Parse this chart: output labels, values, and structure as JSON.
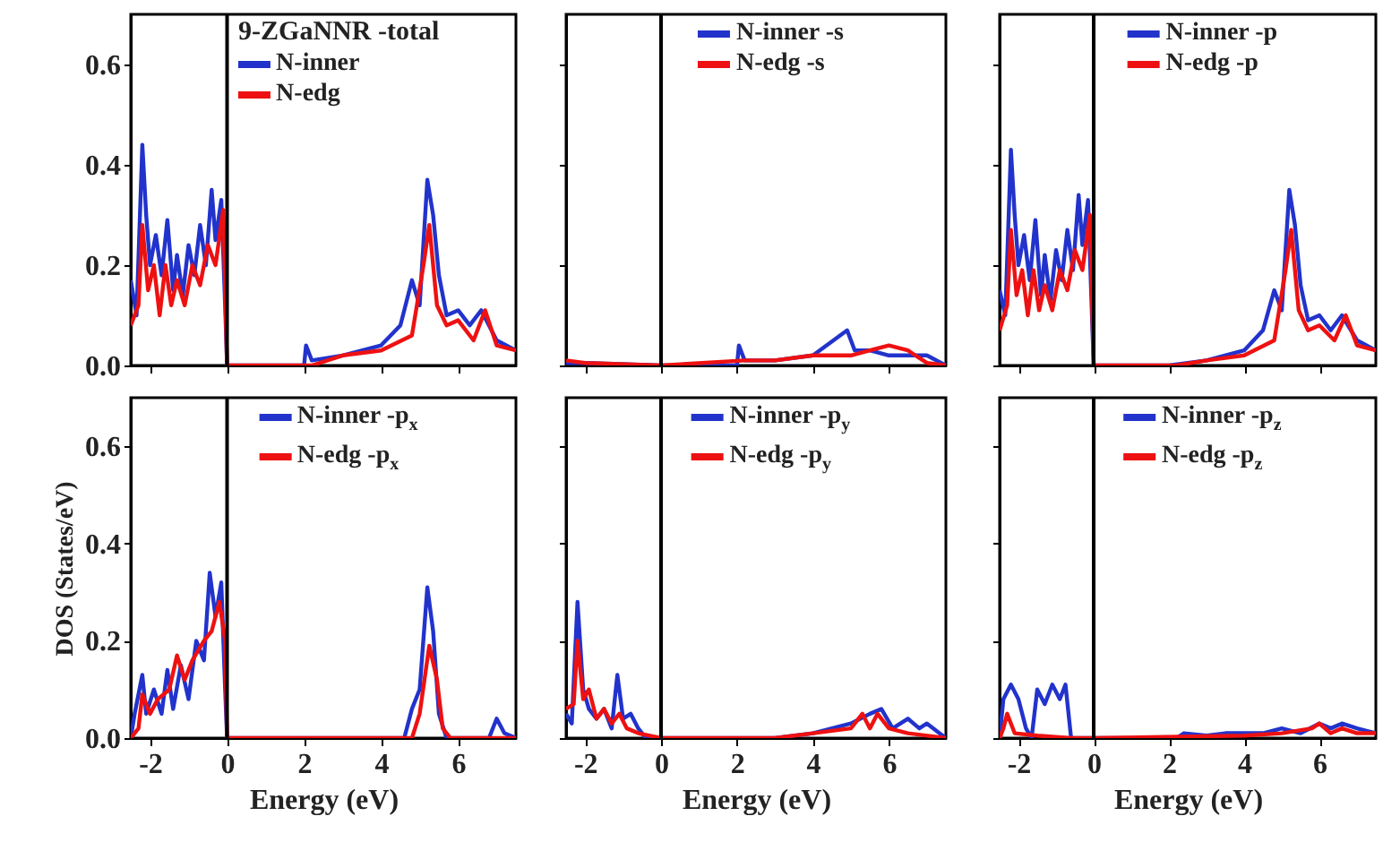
{
  "chart_data": [
    {
      "type": "line",
      "legend_title": "9-ZGaNNR -total",
      "xlim": [
        -2.5,
        7.5
      ],
      "ylim": [
        0,
        0.7
      ],
      "xticks": [
        -2,
        0,
        2,
        4,
        6
      ],
      "yticks": [
        {
          "value": 0,
          "label": "0.0"
        },
        {
          "value": 0.2,
          "label": "0.2"
        },
        {
          "value": 0.4,
          "label": "0.4"
        },
        {
          "value": 0.6,
          "label": "0.6"
        }
      ],
      "tick_labels": "y",
      "legend": "top",
      "grid": false,
      "ref_lines": [
        {
          "axis": "x",
          "value": 0,
          "color": "#000000"
        }
      ],
      "series": [
        {
          "name": "N-inner",
          "color": "#2233cc",
          "x": [
            -2.5,
            -2.35,
            -2.2,
            -2.1,
            -2.0,
            -1.85,
            -1.7,
            -1.55,
            -1.4,
            -1.3,
            -1.15,
            -1.0,
            -0.85,
            -0.7,
            -0.55,
            -0.4,
            -0.3,
            -0.15,
            -0.05,
            0,
            2,
            2.05,
            2.2,
            3,
            4,
            4.5,
            4.8,
            5.0,
            5.2,
            5.35,
            5.5,
            5.7,
            6.0,
            6.3,
            6.6,
            7.0,
            7.5
          ],
          "values": [
            0.17,
            0.1,
            0.44,
            0.3,
            0.2,
            0.26,
            0.18,
            0.29,
            0.15,
            0.22,
            0.14,
            0.24,
            0.18,
            0.28,
            0.2,
            0.35,
            0.25,
            0.33,
            0.12,
            0,
            0,
            0.04,
            0.01,
            0.02,
            0.04,
            0.08,
            0.17,
            0.12,
            0.37,
            0.3,
            0.18,
            0.1,
            0.11,
            0.08,
            0.11,
            0.05,
            0.03
          ]
        },
        {
          "name": "N-edg",
          "color": "#ee1111",
          "x": [
            -2.5,
            -2.3,
            -2.2,
            -2.05,
            -1.9,
            -1.75,
            -1.6,
            -1.45,
            -1.3,
            -1.1,
            -0.9,
            -0.7,
            -0.5,
            -0.3,
            -0.1,
            0,
            2.2,
            3,
            4,
            4.8,
            5.1,
            5.25,
            5.45,
            5.7,
            6.0,
            6.4,
            6.7,
            7.0,
            7.5
          ],
          "values": [
            0.08,
            0.12,
            0.28,
            0.15,
            0.2,
            0.1,
            0.2,
            0.12,
            0.17,
            0.12,
            0.2,
            0.16,
            0.24,
            0.2,
            0.31,
            0,
            0,
            0.02,
            0.03,
            0.06,
            0.2,
            0.28,
            0.12,
            0.08,
            0.09,
            0.05,
            0.11,
            0.04,
            0.03
          ]
        }
      ]
    },
    {
      "type": "line",
      "xlim": [
        -2.5,
        7.5
      ],
      "ylim": [
        0,
        0.7
      ],
      "xticks": [
        -2,
        0,
        2,
        4,
        6
      ],
      "yticks": [
        0,
        0.2,
        0.4,
        0.6
      ],
      "tick_labels": false,
      "legend": "top",
      "grid": false,
      "ref_lines": [
        {
          "axis": "x",
          "value": 0,
          "color": "#000000"
        }
      ],
      "series": [
        {
          "name": "N-inner -s",
          "color": "#2233cc",
          "x": [
            -2.5,
            -2,
            0,
            2,
            2.05,
            2.2,
            3,
            4,
            4.9,
            5.1,
            5.5,
            6,
            7,
            7.5
          ],
          "values": [
            0.005,
            0.005,
            0,
            0,
            0.04,
            0.01,
            0.01,
            0.02,
            0.07,
            0.03,
            0.03,
            0.02,
            0.02,
            0
          ]
        },
        {
          "name": "N-edg -s",
          "color": "#ee1111",
          "x": [
            -2.5,
            -2,
            0,
            2.2,
            3,
            4,
            5.0,
            5.5,
            6.0,
            6.5,
            7.0,
            7.5
          ],
          "values": [
            0.01,
            0.005,
            0,
            0.01,
            0.01,
            0.02,
            0.02,
            0.03,
            0.04,
            0.03,
            0.005,
            0
          ]
        }
      ]
    },
    {
      "type": "line",
      "xlim": [
        -2.5,
        7.5
      ],
      "ylim": [
        0,
        0.7
      ],
      "xticks": [
        -2,
        0,
        2,
        4,
        6
      ],
      "yticks": [
        0,
        0.2,
        0.4,
        0.6
      ],
      "tick_labels": false,
      "legend": "top",
      "grid": false,
      "ref_lines": [
        {
          "axis": "x",
          "value": 0,
          "color": "#000000"
        }
      ],
      "series": [
        {
          "name": "N-inner -p",
          "color": "#2233cc",
          "x": [
            -2.5,
            -2.35,
            -2.2,
            -2.1,
            -2.0,
            -1.85,
            -1.7,
            -1.55,
            -1.4,
            -1.3,
            -1.15,
            -1.0,
            -0.85,
            -0.7,
            -0.55,
            -0.4,
            -0.3,
            -0.15,
            -0.05,
            0,
            2,
            3,
            4,
            4.5,
            4.8,
            5.0,
            5.2,
            5.35,
            5.5,
            5.7,
            6.0,
            6.3,
            6.6,
            7.0,
            7.5
          ],
          "values": [
            0.15,
            0.1,
            0.43,
            0.3,
            0.2,
            0.26,
            0.17,
            0.29,
            0.14,
            0.22,
            0.13,
            0.23,
            0.17,
            0.27,
            0.19,
            0.34,
            0.24,
            0.33,
            0.11,
            0,
            0,
            0.01,
            0.03,
            0.07,
            0.15,
            0.11,
            0.35,
            0.28,
            0.16,
            0.09,
            0.1,
            0.07,
            0.1,
            0.05,
            0.03
          ]
        },
        {
          "name": "N-edg -p",
          "color": "#ee1111",
          "x": [
            -2.5,
            -2.3,
            -2.2,
            -2.05,
            -1.9,
            -1.75,
            -1.6,
            -1.45,
            -1.3,
            -1.1,
            -0.9,
            -0.7,
            -0.5,
            -0.3,
            -0.1,
            0,
            2.2,
            3,
            4,
            4.8,
            5.1,
            5.25,
            5.45,
            5.7,
            6.0,
            6.4,
            6.7,
            7.0,
            7.5
          ],
          "values": [
            0.07,
            0.12,
            0.27,
            0.14,
            0.19,
            0.1,
            0.19,
            0.11,
            0.16,
            0.11,
            0.19,
            0.15,
            0.23,
            0.19,
            0.3,
            0,
            0,
            0.01,
            0.02,
            0.05,
            0.19,
            0.27,
            0.11,
            0.07,
            0.08,
            0.05,
            0.1,
            0.04,
            0.03
          ]
        }
      ]
    },
    {
      "type": "line",
      "xlabel": "Energy (eV)",
      "ylabel": "DOS (States/eV)",
      "xlim": [
        -2.5,
        7.5
      ],
      "ylim": [
        0,
        0.7
      ],
      "xticks": [
        -2,
        0,
        2,
        4,
        6
      ],
      "yticks": [
        {
          "value": 0,
          "label": "0.0"
        },
        {
          "value": 0.2,
          "label": "0.2"
        },
        {
          "value": 0.4,
          "label": "0.4"
        },
        {
          "value": 0.6,
          "label": "0.6"
        }
      ],
      "legend": "top",
      "grid": false,
      "ref_lines": [
        {
          "axis": "x",
          "value": 0,
          "color": "#000000"
        }
      ],
      "series": [
        {
          "name": "N-inner -p$_{x}$",
          "color": "#2233cc",
          "x": [
            -2.5,
            -2.4,
            -2.2,
            -2.1,
            -1.9,
            -1.7,
            -1.55,
            -1.4,
            -1.2,
            -1.0,
            -0.8,
            -0.6,
            -0.45,
            -0.3,
            -0.15,
            -0.05,
            0,
            4.6,
            4.8,
            5.0,
            5.2,
            5.35,
            5.5,
            5.7,
            6.8,
            7.0,
            7.2,
            7.5
          ],
          "values": [
            0,
            0.05,
            0.13,
            0.05,
            0.1,
            0.05,
            0.14,
            0.06,
            0.15,
            0.08,
            0.2,
            0.16,
            0.34,
            0.25,
            0.32,
            0.1,
            0,
            0,
            0.06,
            0.1,
            0.31,
            0.22,
            0.05,
            0,
            0,
            0.04,
            0.01,
            0
          ]
        },
        {
          "name": "N-edg -p$_{x}$",
          "color": "#ee1111",
          "x": [
            -2.5,
            -2.3,
            -2.2,
            -2.0,
            -1.8,
            -1.5,
            -1.3,
            -1.1,
            -0.9,
            -0.6,
            -0.4,
            -0.2,
            -0.05,
            0,
            4.8,
            5.0,
            5.25,
            5.45,
            5.6,
            5.8,
            7.5
          ],
          "values": [
            0,
            0.02,
            0.09,
            0.05,
            0.08,
            0.1,
            0.17,
            0.12,
            0.16,
            0.2,
            0.22,
            0.28,
            0.2,
            0,
            0,
            0.05,
            0.19,
            0.12,
            0.02,
            0,
            0
          ]
        }
      ]
    },
    {
      "type": "line",
      "xlabel": "Energy (eV)",
      "xlim": [
        -2.5,
        7.5
      ],
      "ylim": [
        0,
        0.7
      ],
      "xticks": [
        -2,
        0,
        2,
        4,
        6
      ],
      "yticks": [
        0,
        0.2,
        0.4,
        0.6
      ],
      "tick_labels": "x",
      "legend": "top",
      "grid": false,
      "ref_lines": [
        {
          "axis": "x",
          "value": 0,
          "color": "#000000"
        }
      ],
      "series": [
        {
          "name": "N-inner -p$_{y}$",
          "color": "#2233cc",
          "x": [
            -2.5,
            -2.35,
            -2.2,
            -2.05,
            -1.9,
            -1.7,
            -1.5,
            -1.3,
            -1.15,
            -1.0,
            -0.8,
            -0.6,
            -0.4,
            0,
            3,
            4,
            5,
            5.5,
            5.8,
            6.1,
            6.5,
            6.8,
            7.0,
            7.5
          ],
          "values": [
            0.05,
            0.03,
            0.28,
            0.1,
            0.06,
            0.04,
            0.06,
            0.02,
            0.13,
            0.04,
            0.05,
            0.02,
            0,
            0,
            0,
            0.01,
            0.03,
            0.05,
            0.06,
            0.02,
            0.04,
            0.02,
            0.03,
            0
          ]
        },
        {
          "name": "N-edg -p$_{y}$",
          "color": "#ee1111",
          "x": [
            -2.5,
            -2.3,
            -2.2,
            -2.05,
            -1.9,
            -1.7,
            -1.5,
            -1.3,
            -1.1,
            -0.9,
            -0.6,
            0,
            3,
            4,
            5,
            5.3,
            5.5,
            5.7,
            6.0,
            6.5,
            7.5
          ],
          "values": [
            0.06,
            0.07,
            0.2,
            0.08,
            0.1,
            0.04,
            0.06,
            0.03,
            0.05,
            0.02,
            0.01,
            0,
            0,
            0.01,
            0.02,
            0.05,
            0.02,
            0.05,
            0.02,
            0.01,
            0
          ]
        }
      ]
    },
    {
      "type": "line",
      "xlabel": "Energy (eV)",
      "xlim": [
        -2.5,
        7.5
      ],
      "ylim": [
        0,
        0.7
      ],
      "xticks": [
        -2,
        0,
        2,
        4,
        6
      ],
      "yticks": [
        0,
        0.2,
        0.4,
        0.6
      ],
      "tick_labels": "x",
      "legend": "top",
      "grid": false,
      "ref_lines": [
        {
          "axis": "x",
          "value": 0,
          "color": "#000000"
        }
      ],
      "series": [
        {
          "name": "N-inner -p$_{z}$",
          "color": "#2233cc",
          "x": [
            -2.5,
            -2.4,
            -2.2,
            -2.0,
            -1.8,
            -1.65,
            -1.5,
            -1.3,
            -1.1,
            -0.9,
            -0.75,
            -0.6,
            0,
            2.2,
            2.4,
            3,
            3.5,
            4.5,
            5.0,
            5.5,
            6.0,
            6.3,
            6.6,
            7.0,
            7.5
          ],
          "values": [
            0,
            0.08,
            0.11,
            0.08,
            0.02,
            0,
            0.1,
            0.07,
            0.11,
            0.08,
            0.11,
            0,
            0,
            0,
            0.01,
            0.005,
            0.01,
            0.01,
            0.02,
            0.01,
            0.03,
            0.02,
            0.03,
            0.02,
            0.01
          ]
        },
        {
          "name": "N-edg -p$_{z}$",
          "color": "#ee1111",
          "x": [
            -2.5,
            -2.4,
            -2.3,
            -2.1,
            -1.5,
            -0.6,
            0,
            4,
            5,
            5.8,
            6.0,
            6.3,
            6.6,
            7.0,
            7.5
          ],
          "values": [
            0,
            0.02,
            0.05,
            0.01,
            0.005,
            0,
            0,
            0.005,
            0.01,
            0.02,
            0.03,
            0.01,
            0.02,
            0.01,
            0.01
          ]
        }
      ]
    }
  ]
}
